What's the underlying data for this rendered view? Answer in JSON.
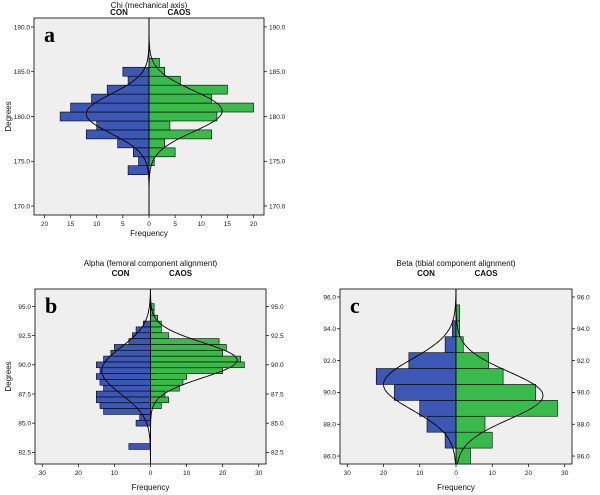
{
  "colors": {
    "con": "#3c58b4",
    "caos": "#3aba4a",
    "plot_bg": "#efefef",
    "curve": "#000000"
  },
  "chart_data": [
    {
      "id": "a",
      "type": "bar",
      "orientation": "horizontal-back-to-back",
      "panel_label": "a",
      "title": "Chi (mechanical axis)",
      "left_group": "CON",
      "right_group": "CAOS",
      "xlabel": "Frequency",
      "ylabel": "Degrees",
      "xlim": [
        -22,
        22
      ],
      "ylim": [
        169,
        191
      ],
      "bin_width": 1,
      "x_ticks": [
        {
          "v": -20,
          "t": "20"
        },
        {
          "v": -15,
          "t": "15"
        },
        {
          "v": -10,
          "t": "10"
        },
        {
          "v": -5,
          "t": "5"
        },
        {
          "v": 0,
          "t": "0"
        },
        {
          "v": 5,
          "t": "5"
        },
        {
          "v": 10,
          "t": "10"
        },
        {
          "v": 15,
          "t": "15"
        },
        {
          "v": 20,
          "t": "20"
        }
      ],
      "y_ticks_left": [
        {
          "v": 190,
          "t": "190.0"
        },
        {
          "v": 185,
          "t": "185.0"
        },
        {
          "v": 180,
          "t": "180.0"
        },
        {
          "v": 175,
          "t": "175.0"
        },
        {
          "v": 170,
          "t": "170.0"
        }
      ],
      "y_ticks_right": [
        {
          "v": 190,
          "t": "190.0"
        },
        {
          "v": 185,
          "t": "185.0"
        },
        {
          "v": 180,
          "t": "180.0"
        },
        {
          "v": 175,
          "t": "175.0"
        },
        {
          "v": 170,
          "t": "170.0"
        }
      ],
      "con": {
        "bins": [
          174,
          175,
          176,
          177,
          178,
          179,
          180,
          181,
          182,
          183,
          184,
          185
        ],
        "counts": [
          4,
          2,
          3,
          6,
          12,
          10,
          17,
          15,
          11,
          8,
          4,
          5
        ]
      },
      "caos": {
        "bins": [
          175,
          176,
          177,
          178,
          179,
          180,
          181,
          182,
          183,
          184,
          185,
          186
        ],
        "counts": [
          1,
          5,
          3,
          12,
          4,
          13,
          20,
          12,
          15,
          6,
          3,
          2
        ]
      },
      "con_curve": {
        "mean": 180.3,
        "sd": 2.2,
        "peak": 12
      },
      "caos_curve": {
        "mean": 180.6,
        "sd": 2.3,
        "peak": 14
      }
    },
    {
      "id": "b",
      "type": "bar",
      "orientation": "horizontal-back-to-back",
      "panel_label": "b",
      "title": "Alpha (femoral component alignment)",
      "left_group": "CON",
      "right_group": "CAOS",
      "xlabel": "Frequency",
      "ylabel": "Degrees",
      "xlim": [
        -32,
        32
      ],
      "ylim": [
        81.5,
        96.5
      ],
      "bin_width": 0.5,
      "x_ticks": [
        {
          "v": -30,
          "t": "30"
        },
        {
          "v": -20,
          "t": "20"
        },
        {
          "v": -10,
          "t": "10"
        },
        {
          "v": 0,
          "t": "0"
        },
        {
          "v": 10,
          "t": "10"
        },
        {
          "v": 20,
          "t": "20"
        },
        {
          "v": 30,
          "t": "30"
        }
      ],
      "y_ticks_left": [
        {
          "v": 95,
          "t": "95.0"
        },
        {
          "v": 92.5,
          "t": "92.5"
        },
        {
          "v": 90,
          "t": "90.0"
        },
        {
          "v": 87.5,
          "t": "87.5"
        },
        {
          "v": 85,
          "t": "85.0"
        },
        {
          "v": 82.5,
          "t": "82.5"
        }
      ],
      "y_ticks_right": [
        {
          "v": 95,
          "t": "95.0"
        },
        {
          "v": 92.5,
          "t": "92.5"
        },
        {
          "v": 90,
          "t": "90.0"
        },
        {
          "v": 87.5,
          "t": "87.5"
        },
        {
          "v": 85,
          "t": "85.0"
        },
        {
          "v": 82.5,
          "t": "82.5"
        }
      ],
      "con": {
        "bins": [
          83,
          85,
          85.5,
          86,
          86.5,
          87,
          87.5,
          88,
          88.5,
          89,
          89.5,
          90,
          90.5,
          91,
          91.5,
          92,
          92.5,
          93,
          93.5
        ],
        "counts": [
          6,
          4,
          3,
          13,
          14,
          15,
          15,
          13,
          14,
          15,
          14,
          15,
          13,
          11,
          10,
          6,
          5,
          4,
          2
        ]
      },
      "caos": {
        "bins": [
          86.5,
          87,
          87.5,
          88,
          88.5,
          89,
          89.5,
          90,
          90.5,
          91,
          91.5,
          92,
          92.5,
          93,
          93.5,
          94,
          94.5,
          95
        ],
        "counts": [
          3,
          5,
          4,
          8,
          9,
          10,
          20,
          26,
          25,
          20,
          21,
          19,
          5,
          3,
          3,
          2,
          1,
          1
        ]
      },
      "con_curve": {
        "mean": 89.5,
        "sd": 2.0,
        "peak": 13.5
      },
      "caos_curve": {
        "mean": 90.4,
        "sd": 1.5,
        "peak": 24
      }
    },
    {
      "id": "c",
      "type": "bar",
      "orientation": "horizontal-back-to-back",
      "panel_label": "c",
      "title": "Beta (tibial component alignment)",
      "left_group": "CON",
      "right_group": "CAOS",
      "xlabel": "Frequency",
      "ylabel": "",
      "xlim": [
        -32,
        32
      ],
      "ylim": [
        85.5,
        96.5
      ],
      "bin_width": 1,
      "x_ticks": [
        {
          "v": -30,
          "t": "30"
        },
        {
          "v": -20,
          "t": "20"
        },
        {
          "v": -10,
          "t": "10"
        },
        {
          "v": 0,
          "t": "0"
        },
        {
          "v": 10,
          "t": "10"
        },
        {
          "v": 20,
          "t": "20"
        },
        {
          "v": 30,
          "t": "30"
        }
      ],
      "y_ticks_left": [
        {
          "v": 96,
          "t": "96.0"
        },
        {
          "v": 94,
          "t": "94.0"
        },
        {
          "v": 92,
          "t": "92.0"
        },
        {
          "v": 90,
          "t": "90.0"
        },
        {
          "v": 88,
          "t": "88.0"
        },
        {
          "v": 86,
          "t": "86.0"
        }
      ],
      "y_ticks_right": [
        {
          "v": 96,
          "t": "96.0"
        },
        {
          "v": 94,
          "t": "94.0"
        },
        {
          "v": 92,
          "t": "92.0"
        },
        {
          "v": 90,
          "t": "90.0"
        },
        {
          "v": 88,
          "t": "88.0"
        },
        {
          "v": 86,
          "t": "86.0"
        }
      ],
      "con": {
        "bins": [
          87,
          88,
          89,
          90,
          91,
          92,
          93,
          94
        ],
        "counts": [
          3,
          8,
          10,
          17,
          22,
          13,
          3,
          1
        ]
      },
      "caos": {
        "bins": [
          86,
          87,
          88,
          89,
          90,
          91,
          92,
          93,
          94,
          95
        ],
        "counts": [
          4,
          10,
          8,
          28,
          22,
          13,
          9,
          2,
          1,
          1
        ]
      },
      "con_curve": {
        "mean": 90.5,
        "sd": 1.6,
        "peak": 20
      },
      "caos_curve": {
        "mean": 89.8,
        "sd": 1.5,
        "peak": 24
      }
    }
  ]
}
